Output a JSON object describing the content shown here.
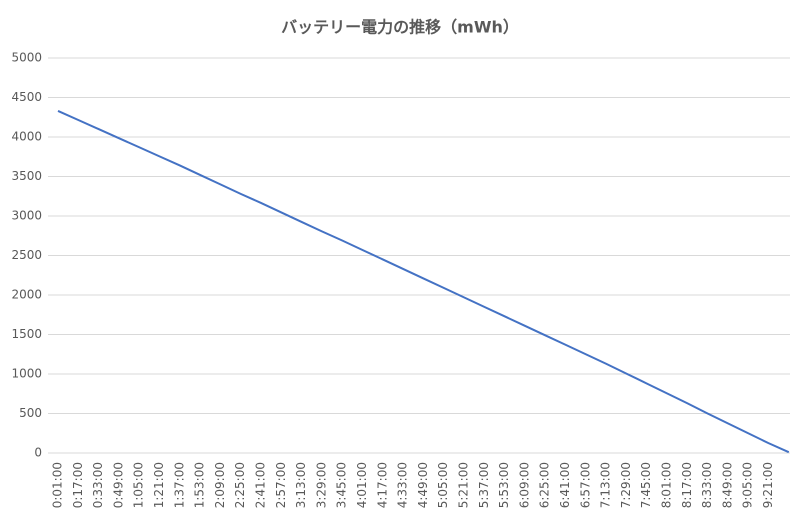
{
  "chart_data": {
    "type": "line",
    "title": "バッテリー電力の推移（mWh）",
    "categories": [
      "0:01:00",
      "0:17:00",
      "0:33:00",
      "0:49:00",
      "1:05:00",
      "1:21:00",
      "1:37:00",
      "1:53:00",
      "2:09:00",
      "2:25:00",
      "2:41:00",
      "2:57:00",
      "3:13:00",
      "3:29:00",
      "3:45:00",
      "4:01:00",
      "4:17:00",
      "4:33:00",
      "4:49:00",
      "5:05:00",
      "5:21:00",
      "5:37:00",
      "5:53:00",
      "6:09:00",
      "6:25:00",
      "6:41:00",
      "6:57:00",
      "7:13:00",
      "7:29:00",
      "7:45:00",
      "8:01:00",
      "8:17:00",
      "8:33:00",
      "8:49:00",
      "9:05:00",
      "9:21:00",
      null
    ],
    "values": [
      4330,
      4215,
      4100,
      3985,
      3870,
      3755,
      3640,
      3520,
      3400,
      3280,
      3165,
      3045,
      2925,
      2805,
      2690,
      2570,
      2450,
      2330,
      2210,
      2090,
      1970,
      1850,
      1730,
      1610,
      1490,
      1370,
      1250,
      1130,
      1005,
      880,
      755,
      630,
      500,
      375,
      250,
      125,
      10
    ],
    "color": "#4472c4",
    "ylim": [
      0,
      5000
    ],
    "yticks": [
      0,
      500,
      1000,
      1500,
      2000,
      2500,
      3000,
      3500,
      4000,
      4500,
      5000
    ],
    "grid": true
  }
}
